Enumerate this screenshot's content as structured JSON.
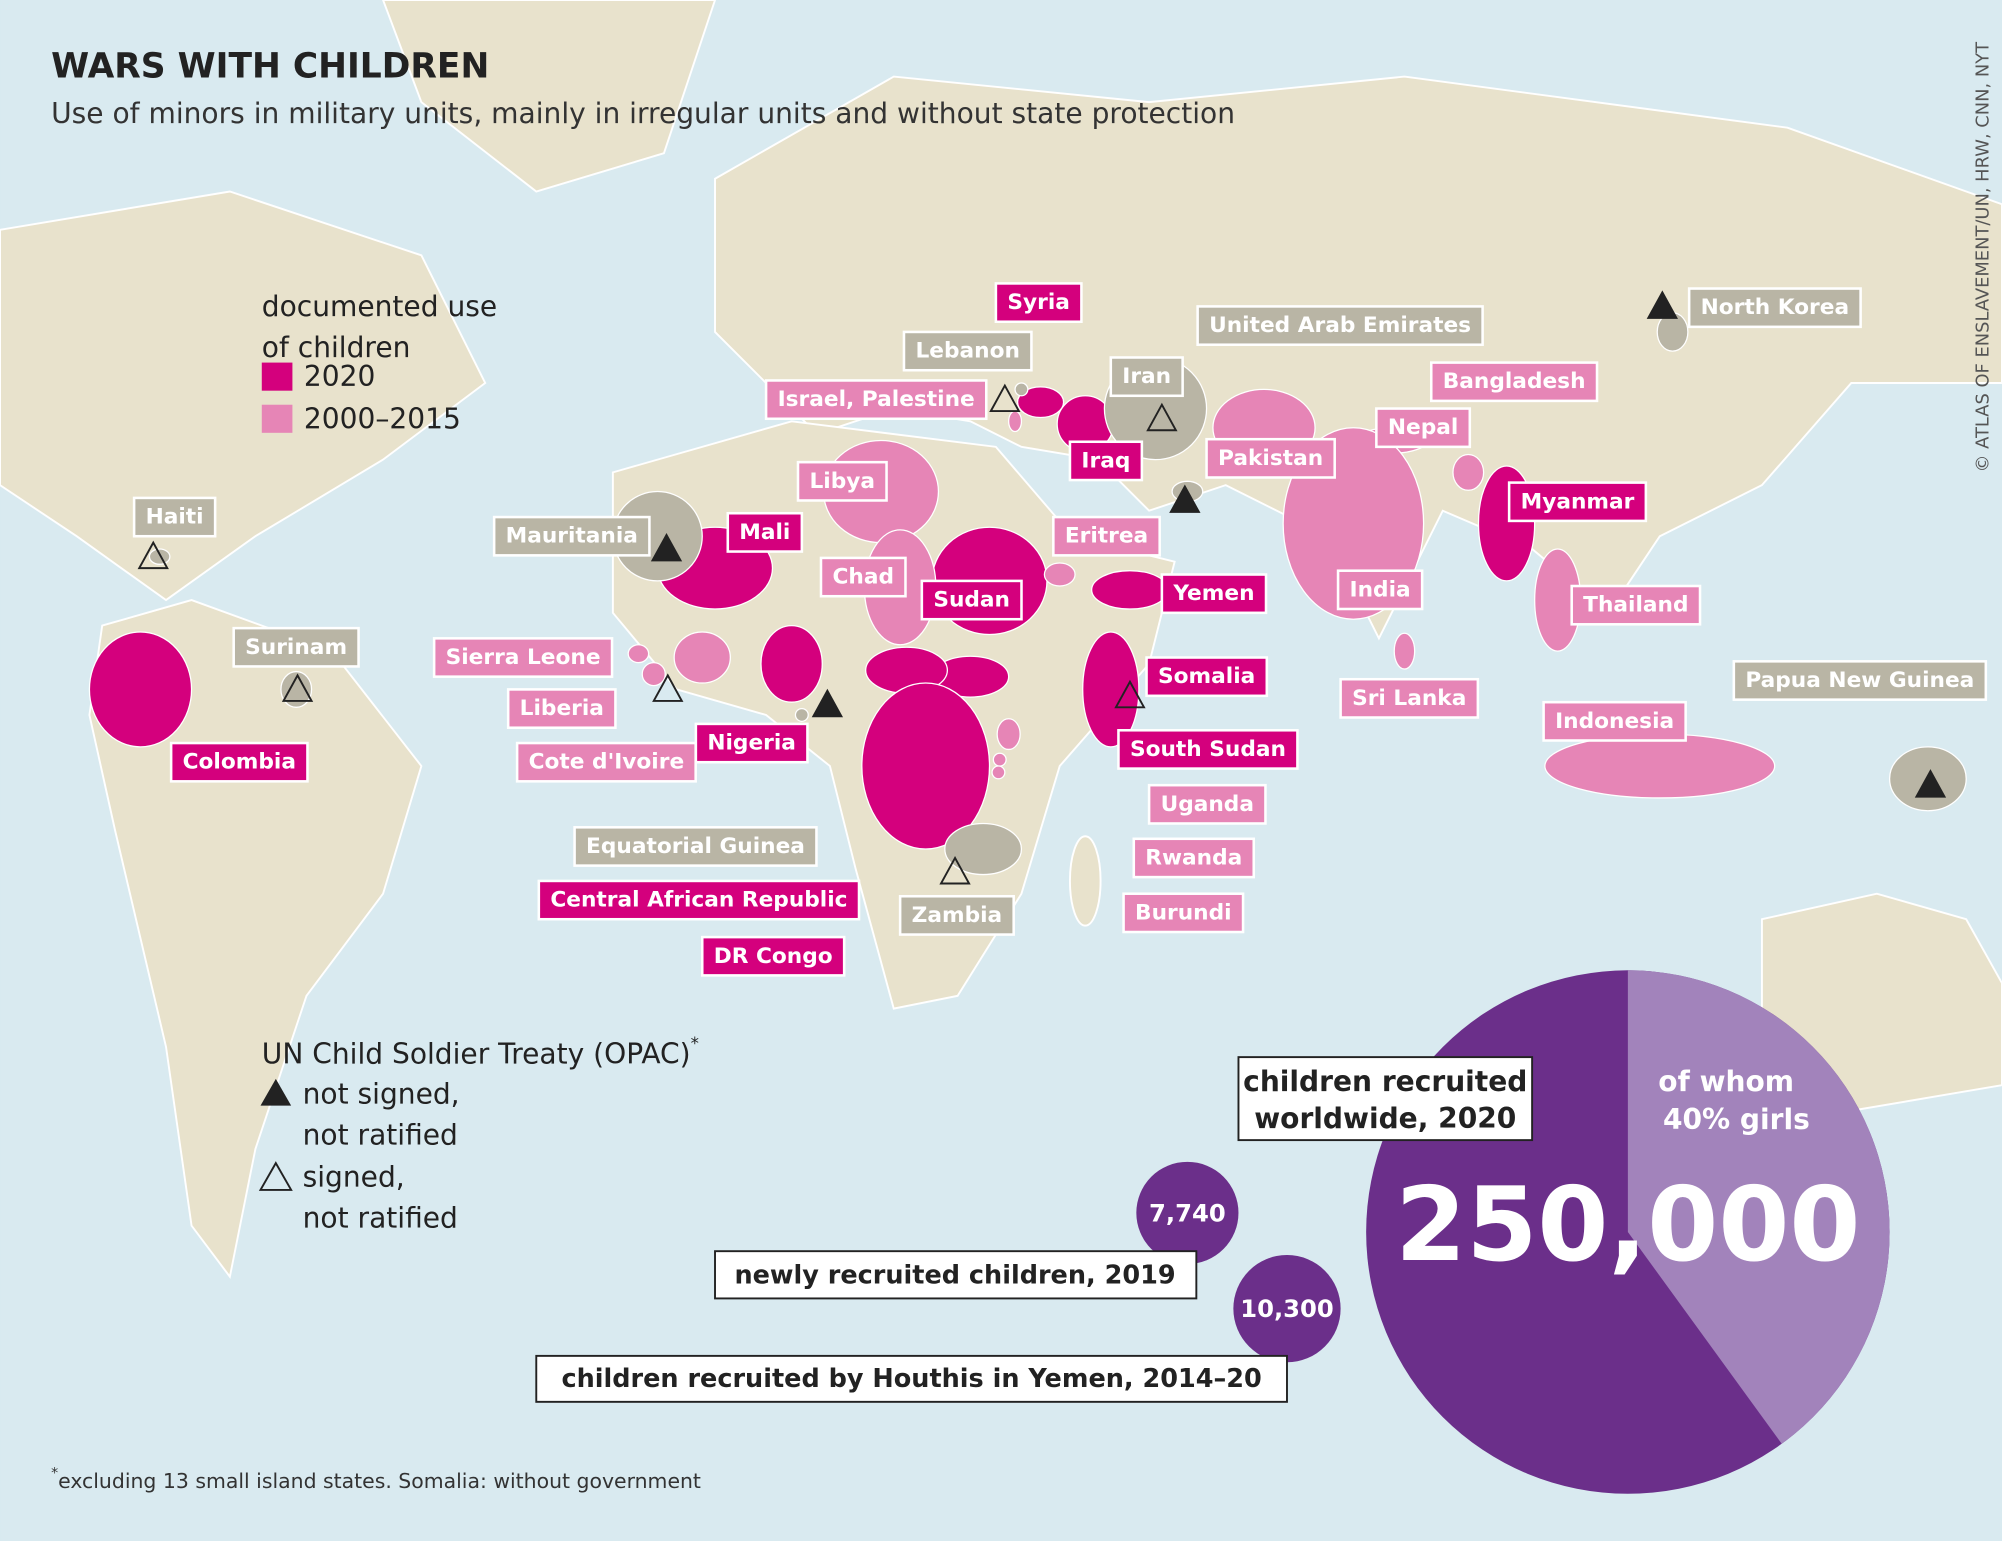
{
  "title": "WARS WITH CHILDREN",
  "subtitle": "Use of minors in military units, mainly in irregular units and without state protection",
  "source": "© ATLAS OF ENSLAVEMENT/UN, HRW, CNN, NYT",
  "legend": {
    "title": [
      "documented use",
      "of children"
    ],
    "items": [
      {
        "label": "2020",
        "color": "#d4007d",
        "countries": [
          "Syria",
          "Iraq",
          "Mali",
          "Sudan",
          "Yemen",
          "Somalia",
          "South Sudan",
          "Nigeria",
          "Colombia",
          "Central African Republic",
          "DR Congo",
          "Myanmar"
        ]
      },
      {
        "label": "2000–2015",
        "color": "#e685b6",
        "countries": [
          "Israel, Palestine",
          "Libya",
          "Chad",
          "Eritrea",
          "Sierra Leone",
          "Liberia",
          "Cote d'Ivoire",
          "Uganda",
          "Rwanda",
          "Burundi",
          "Pakistan",
          "Nepal",
          "Bangladesh",
          "India",
          "Sri Lanka",
          "Thailand",
          "Indonesia"
        ]
      }
    ]
  },
  "other_countries": {
    "color": "#b9b5a5",
    "countries": [
      "Lebanon",
      "Iran",
      "United Arab Emirates",
      "North Korea",
      "Haiti",
      "Mauritania",
      "Surinam",
      "Equatorial Guinea",
      "Zambia",
      "Papua New Guinea"
    ]
  },
  "treaty": {
    "title": "UN Child Soldier Treaty (OPAC)",
    "mark": "*",
    "items": [
      {
        "lines": [
          "not signed,",
          "not ratified"
        ]
      },
      {
        "lines": [
          "signed,",
          "not ratified"
        ]
      }
    ]
  },
  "stats": {
    "total": {
      "label": [
        "children recruited",
        "worldwide, 2020"
      ],
      "value": "250,000",
      "girls": {
        "value": 40,
        "label": [
          "of whom",
          "40% girls"
        ]
      }
    },
    "new_2019": {
      "value": "7,740",
      "label": "newly recruited children, 2019"
    },
    "houthis": {
      "value": "10,300",
      "label": "children recruited by Houthis in Yemen, 2014–20"
    }
  },
  "footnote": {
    "mark": "*",
    "text": "excluding 13 small island states. Somalia: without government"
  }
}
